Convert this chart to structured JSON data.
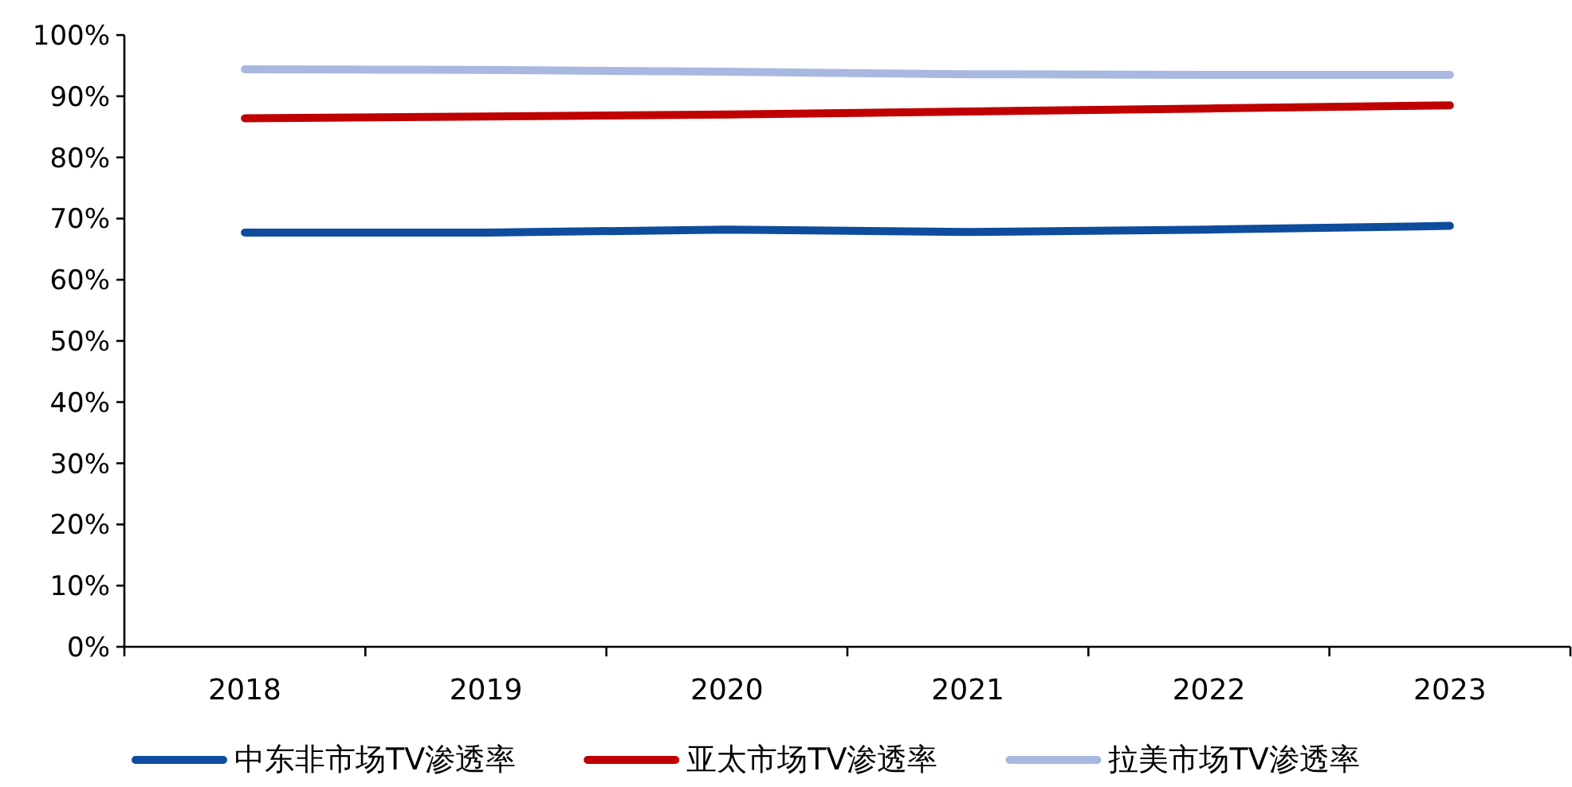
{
  "chart_data": {
    "type": "line",
    "categories": [
      "2018",
      "2019",
      "2020",
      "2021",
      "2022",
      "2023"
    ],
    "series": [
      {
        "name": "中东非市场TV渗透率",
        "color": "#0e4c9d",
        "values": [
          67.7,
          67.7,
          68.2,
          67.8,
          68.2,
          68.8
        ]
      },
      {
        "name": "亚太市场TV渗透率",
        "color": "#c00000",
        "values": [
          86.4,
          86.7,
          87.0,
          87.5,
          88.0,
          88.5
        ]
      },
      {
        "name": "拉美市场TV渗透率",
        "color": "#a9b8e0",
        "values": [
          94.4,
          94.3,
          94.0,
          93.6,
          93.5,
          93.5
        ]
      }
    ],
    "ylim": [
      0,
      100
    ],
    "yticks": [
      {
        "value": 0,
        "label": "0%"
      },
      {
        "value": 10,
        "label": "10%"
      },
      {
        "value": 20,
        "label": "20%"
      },
      {
        "value": 30,
        "label": "30%"
      },
      {
        "value": 40,
        "label": "40%"
      },
      {
        "value": 50,
        "label": "50%"
      },
      {
        "value": 60,
        "label": "60%"
      },
      {
        "value": 70,
        "label": "70%"
      },
      {
        "value": 80,
        "label": "80%"
      },
      {
        "value": 90,
        "label": "90%"
      },
      {
        "value": 100,
        "label": "100%"
      }
    ],
    "legend": "bottom",
    "grid": false,
    "marker": "none",
    "line_style": "solid"
  }
}
